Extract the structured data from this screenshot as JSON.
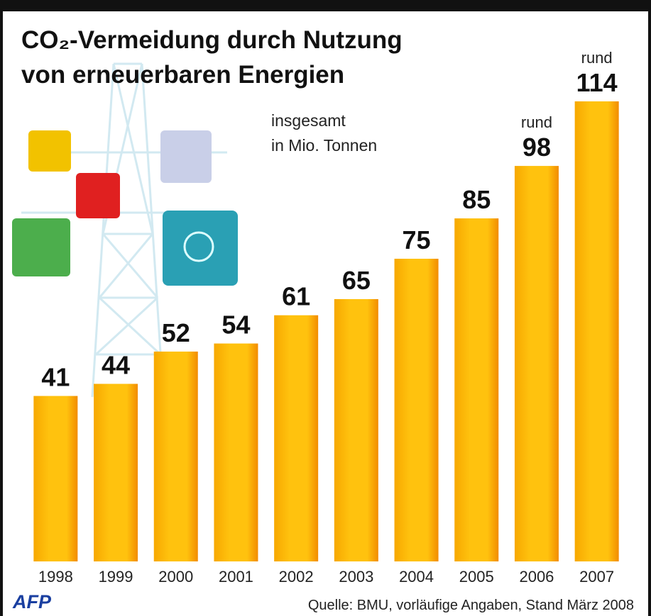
{
  "chart_data": {
    "type": "bar",
    "title": [
      "CO₂-Vermeidung durch Nutzung",
      "von erneuerbaren Energien"
    ],
    "subtitle": [
      "insgesamt",
      "in Mio. Tonnen"
    ],
    "categories": [
      "1998",
      "1999",
      "2000",
      "2001",
      "2002",
      "2003",
      "2004",
      "2005",
      "2006",
      "2007"
    ],
    "values": [
      41,
      44,
      52,
      54,
      61,
      65,
      75,
      85,
      98,
      114
    ],
    "color": "#ffc20e",
    "annotations": [
      {
        "text": "rund",
        "category": "2006"
      },
      {
        "text": "rund",
        "category": "2007"
      }
    ],
    "source": "Quelle: BMU, vorläufige Angaben, Stand März 2008",
    "logo": "AFP"
  }
}
